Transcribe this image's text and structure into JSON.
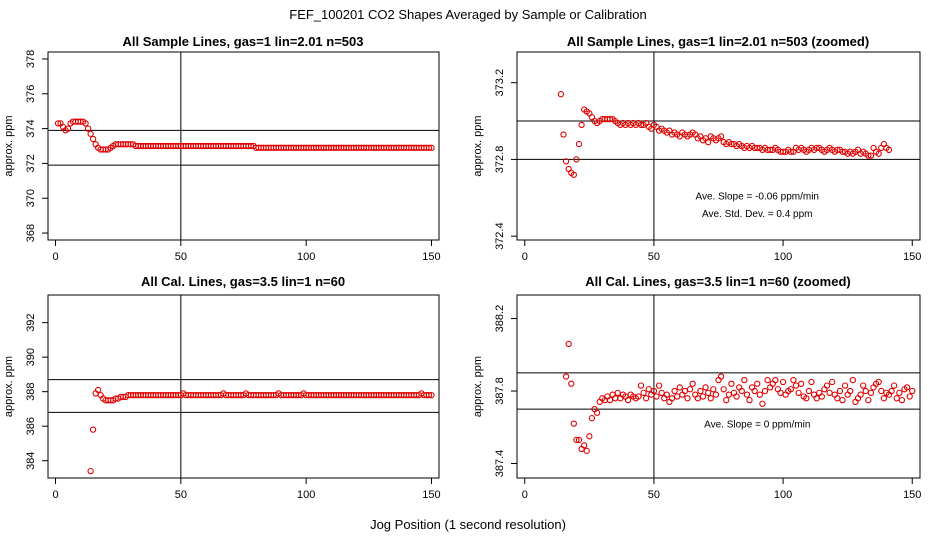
{
  "figure": {
    "title": "FEF_100201  CO2 Shapes Averaged by Sample or Calibration",
    "xlabel": "Jog Position (1 second resolution)"
  },
  "colors": {
    "points": "#e00000",
    "lines": "#000000"
  },
  "chart_data": [
    {
      "type": "scatter",
      "title": "All Sample Lines, gas=1 lin=2.01 n=503",
      "ylabel": "approx. ppm",
      "xlim": [
        -3,
        153
      ],
      "ylim": [
        367.6,
        378.4
      ],
      "xticks": [
        0,
        50,
        100,
        150
      ],
      "yticks": [
        368,
        370,
        372,
        374,
        376,
        378
      ],
      "hlines": [
        373.9,
        371.9
      ],
      "vline": 50,
      "annotations": [],
      "series": [
        {
          "x_start": 1,
          "x_step": 1,
          "y": [
            374.3,
            374.3,
            374.1,
            373.9,
            374.0,
            374.3,
            374.4,
            374.4,
            374.4,
            374.4,
            374.4,
            374.3,
            374.0,
            373.7,
            373.4,
            373.1,
            372.9,
            372.8,
            372.8,
            372.8,
            372.8,
            372.9,
            373.0,
            373.1,
            373.1,
            373.1,
            373.1,
            373.1,
            373.1,
            373.1,
            373.1,
            373.0,
            373.0,
            373.0,
            373.0,
            373.0,
            373.0,
            373.0,
            373.0,
            373.0,
            373.0,
            373.0,
            373.0,
            373.0,
            373.0,
            373.0,
            373.0,
            373.0,
            373.0,
            373.0,
            373.0,
            373.0,
            373.0,
            373.0,
            373.0,
            373.0,
            373.0,
            373.0,
            373.0,
            373.0,
            373.0,
            373.0,
            373.0,
            373.0,
            373.0,
            373.0,
            373.0,
            373.0,
            373.0,
            373.0,
            373.0,
            373.0,
            373.0,
            373.0,
            373.0,
            373.0,
            373.0,
            373.0,
            373.0,
            372.9,
            372.9,
            372.9,
            372.9,
            372.9,
            372.9,
            372.9,
            372.9,
            372.9,
            372.9,
            372.9,
            372.9,
            372.9,
            372.9,
            372.9,
            372.9,
            372.9,
            372.9,
            372.9,
            372.9,
            372.9,
            372.9,
            372.9,
            372.9,
            372.9,
            372.9,
            372.9,
            372.9,
            372.9,
            372.9,
            372.9,
            372.9,
            372.9,
            372.9,
            372.9,
            372.9,
            372.9,
            372.9,
            372.9,
            372.9,
            372.9,
            372.9,
            372.9,
            372.9,
            372.9,
            372.9,
            372.9,
            372.9,
            372.9,
            372.9,
            372.9,
            372.9,
            372.9,
            372.9,
            372.9,
            372.9,
            372.9,
            372.9,
            372.9,
            372.9,
            372.9,
            372.9,
            372.9,
            372.9,
            372.9,
            372.9,
            372.9,
            372.9,
            372.9,
            372.9,
            372.9
          ]
        }
      ]
    },
    {
      "type": "scatter",
      "title": "All Sample Lines, gas=1 lin=2.01 n=503 (zoomed)",
      "ylabel": "approx. ppm",
      "xlim": [
        -3,
        153
      ],
      "ylim": [
        372.38,
        373.36
      ],
      "xticks": [
        0,
        50,
        100,
        150
      ],
      "yticks": [
        372.4,
        372.8,
        373.2
      ],
      "hlines": [
        373.0,
        372.8
      ],
      "vline": 50,
      "annotations": [
        {
          "text": "Ave. Slope =  -0.06  ppm/min",
          "x": 90,
          "y": 372.59
        },
        {
          "text": "Ave. Std. Dev. =  0.4  ppm",
          "x": 90,
          "y": 372.5
        }
      ],
      "series": [
        {
          "x_start": 14,
          "x_step": 1,
          "y": [
            373.14,
            372.93,
            372.79,
            372.75,
            372.73,
            372.72,
            372.8,
            372.88,
            372.98,
            373.06,
            373.05,
            373.04,
            373.02,
            373.0,
            372.99,
            373.0,
            373.01,
            373.01,
            373.01,
            373.01,
            373.01,
            373.0,
            372.99,
            372.98,
            372.99,
            372.98,
            372.99,
            372.98,
            372.99,
            372.98,
            372.99,
            372.98,
            372.98,
            372.99,
            372.97,
            372.96,
            372.98,
            372.97,
            372.95,
            372.96,
            372.95,
            372.94,
            372.95,
            372.93,
            372.94,
            372.93,
            372.92,
            372.94,
            372.93,
            372.92,
            372.93,
            372.94,
            372.93,
            372.91,
            372.92,
            372.9,
            372.91,
            372.89,
            372.92,
            372.91,
            372.9,
            372.91,
            372.92,
            372.89,
            372.88,
            372.89,
            372.88,
            372.88,
            372.87,
            372.88,
            372.87,
            372.86,
            372.87,
            372.86,
            372.87,
            372.86,
            372.86,
            372.86,
            372.85,
            372.86,
            372.85,
            372.85,
            372.85,
            372.86,
            372.85,
            372.84,
            372.84,
            372.84,
            372.85,
            372.84,
            372.84,
            372.86,
            372.85,
            372.86,
            372.85,
            372.84,
            372.85,
            372.86,
            372.85,
            372.86,
            372.86,
            372.85,
            372.84,
            372.85,
            372.86,
            372.85,
            372.84,
            372.85,
            372.85,
            372.84,
            372.84,
            372.83,
            372.84,
            372.83,
            372.84,
            372.85,
            372.83,
            372.84,
            372.83,
            372.82,
            372.82,
            372.86,
            372.84,
            372.83,
            372.86,
            372.88,
            372.86,
            372.85
          ]
        }
      ]
    },
    {
      "type": "scatter",
      "title": "All Cal. Lines, gas=3.5 lin=1 n=60",
      "ylabel": "approx. ppm",
      "xlim": [
        -3,
        153
      ],
      "ylim": [
        383,
        393.6
      ],
      "xticks": [
        0,
        50,
        100,
        150
      ],
      "yticks": [
        384,
        386,
        388,
        390,
        392
      ],
      "hlines": [
        388.7,
        386.8
      ],
      "vline": 50,
      "annotations": [],
      "series": [
        {
          "x_start": 14,
          "x_step": 1,
          "y": [
            383.4,
            385.8,
            387.9,
            388.1,
            387.8,
            387.6,
            387.5,
            387.5,
            387.5,
            387.5,
            387.6,
            387.6,
            387.7,
            387.7,
            387.7,
            387.8,
            387.8,
            387.8,
            387.8,
            387.8,
            387.8,
            387.8,
            387.8,
            387.8,
            387.8,
            387.8,
            387.8,
            387.8,
            387.8,
            387.8,
            387.8,
            387.8,
            387.8,
            387.8,
            387.8,
            387.8,
            387.8,
            387.9,
            387.8,
            387.8,
            387.8,
            387.8,
            387.8,
            387.8,
            387.8,
            387.8,
            387.8,
            387.8,
            387.8,
            387.8,
            387.8,
            387.8,
            387.8,
            387.9,
            387.8,
            387.8,
            387.8,
            387.8,
            387.8,
            387.8,
            387.8,
            387.8,
            387.9,
            387.8,
            387.8,
            387.8,
            387.8,
            387.8,
            387.8,
            387.8,
            387.8,
            387.8,
            387.8,
            387.8,
            387.8,
            387.9,
            387.8,
            387.8,
            387.8,
            387.8,
            387.8,
            387.8,
            387.8,
            387.8,
            387.8,
            387.9,
            387.8,
            387.8,
            387.8,
            387.8,
            387.8,
            387.8,
            387.8,
            387.8,
            387.8,
            387.8,
            387.8,
            387.8,
            387.8,
            387.8,
            387.8,
            387.8,
            387.8,
            387.8,
            387.8,
            387.8,
            387.8,
            387.8,
            387.8,
            387.8,
            387.8,
            387.8,
            387.8,
            387.8,
            387.8,
            387.8,
            387.8,
            387.8,
            387.8,
            387.8,
            387.8,
            387.8,
            387.8,
            387.8,
            387.8,
            387.8,
            387.8,
            387.8,
            387.8,
            387.8,
            387.8,
            387.8,
            387.9,
            387.8,
            387.8,
            387.8,
            387.8
          ]
        }
      ]
    },
    {
      "type": "scatter",
      "title": "All Cal. Lines, gas=3.5 lin=1 n=60 (zoomed)",
      "ylabel": "approx. ppm",
      "xlim": [
        -3,
        153
      ],
      "ylim": [
        387.32,
        388.33
      ],
      "xticks": [
        0,
        50,
        100,
        150
      ],
      "yticks": [
        387.4,
        387.8,
        388.2
      ],
      "hlines": [
        387.9,
        387.7
      ],
      "vline": 50,
      "annotations": [
        {
          "text": "Ave. Slope =  0  ppm/min",
          "x": 90,
          "y": 387.6
        }
      ],
      "series": [
        {
          "x_start": 16,
          "x_step": 1,
          "y": [
            387.88,
            388.06,
            387.84,
            387.62,
            387.53,
            387.53,
            387.48,
            387.5,
            387.47,
            387.55,
            387.65,
            387.7,
            387.68,
            387.74,
            387.76,
            387.75,
            387.77,
            387.75,
            387.78,
            387.76,
            387.79,
            387.76,
            387.78,
            387.77,
            387.75,
            387.78,
            387.77,
            387.76,
            387.77,
            387.83,
            387.79,
            387.76,
            387.81,
            387.78,
            387.8,
            387.77,
            387.83,
            387.79,
            387.76,
            387.78,
            387.74,
            387.76,
            387.8,
            387.77,
            387.82,
            387.78,
            387.8,
            387.76,
            387.81,
            387.84,
            387.78,
            387.76,
            387.8,
            387.77,
            387.82,
            387.79,
            387.76,
            387.81,
            387.78,
            387.86,
            387.88,
            387.81,
            387.75,
            387.78,
            387.84,
            387.79,
            387.77,
            387.82,
            387.8,
            387.86,
            387.78,
            387.75,
            387.82,
            387.8,
            387.84,
            387.78,
            387.73,
            387.8,
            387.86,
            387.82,
            387.84,
            387.86,
            387.81,
            387.79,
            387.85,
            387.78,
            387.8,
            387.81,
            387.86,
            387.83,
            387.79,
            387.84,
            387.77,
            387.76,
            387.8,
            387.85,
            387.78,
            387.76,
            387.79,
            387.77,
            387.81,
            387.83,
            387.79,
            387.85,
            387.78,
            387.76,
            387.8,
            387.75,
            387.83,
            387.78,
            387.8,
            387.86,
            387.74,
            387.76,
            387.78,
            387.83,
            387.8,
            387.75,
            387.79,
            387.82,
            387.84,
            387.85,
            387.8,
            387.76,
            387.79,
            387.78,
            387.8,
            387.83,
            387.76,
            387.79,
            387.75,
            387.81,
            387.82,
            387.77,
            387.8
          ]
        }
      ]
    }
  ]
}
